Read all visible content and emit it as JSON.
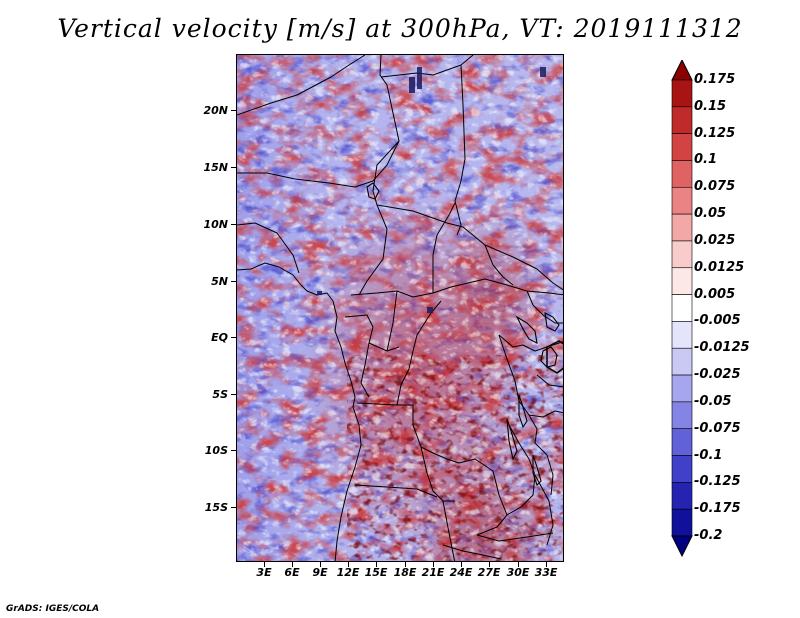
{
  "title": "Vertical velocity [m/s] at 300hPa, VT: 2019111312",
  "footer": "GrADS: IGES/COLA",
  "latitude_labels": [
    "20N",
    "15N",
    "10N",
    "5N",
    "EQ",
    "5S",
    "10S",
    "15S"
  ],
  "longitude_labels": [
    "3E",
    "6E",
    "9E",
    "12E",
    "15E",
    "18E",
    "21E",
    "24E",
    "27E",
    "30E",
    "33E"
  ],
  "colorbar": {
    "levels": [
      "0.175",
      "0.15",
      "0.125",
      "0.1",
      "0.075",
      "0.05",
      "0.025",
      "0.0125",
      "0.005",
      "-0.005",
      "-0.0125",
      "-0.025",
      "-0.05",
      "-0.075",
      "-0.1",
      "-0.125",
      "-0.175",
      "-0.2"
    ],
    "colors": [
      "#8c0000",
      "#a81414",
      "#bf2a2a",
      "#d24444",
      "#e06262",
      "#ea8484",
      "#f3a8a8",
      "#f9cccc",
      "#fde8e8",
      "#ffffff",
      "#e4e4fb",
      "#c9c9f4",
      "#a6a6ee",
      "#8484e4",
      "#6262d8",
      "#4040c8",
      "#2424b0",
      "#10109a",
      "#000080"
    ]
  },
  "map": {
    "variable": "Vertical velocity",
    "units": "m/s",
    "level": "300hPa",
    "valid_time": "2019111312",
    "region": "Central Africa",
    "colors": {
      "positive": "#c83232",
      "negative": "#5050d0",
      "neutral": "#ffffff",
      "borders": "#000000"
    }
  }
}
